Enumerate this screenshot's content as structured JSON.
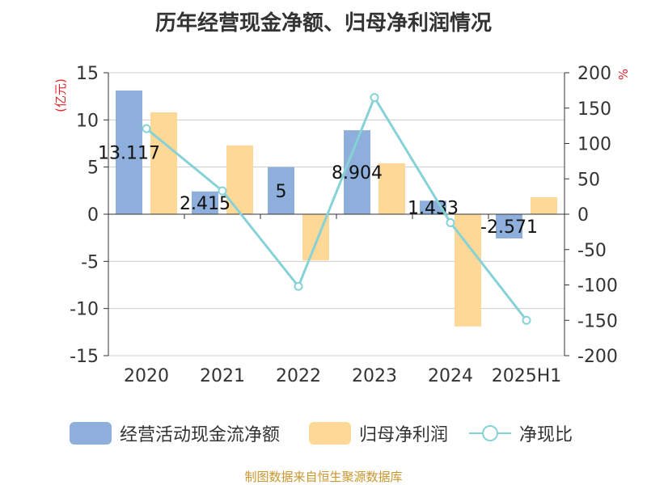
{
  "title": "历年经营现金净额、归母净利润情况",
  "source": "制图数据来自恒生聚源数据库",
  "colors": {
    "cash": "#8eaedb",
    "profit": "#fed897",
    "ratio": "#86d2d6",
    "left_unit": "#e0262b",
    "right_unit": "#e0262b",
    "grid": "#cccccc",
    "axis": "#333333",
    "text": "#333333",
    "source": "#c8962c"
  },
  "legend": {
    "cash": "经营活动现金流净额",
    "profit": "归母净利润",
    "ratio": "净现比"
  },
  "chart_data": {
    "type": "bar",
    "categories": [
      "2020",
      "2021",
      "2022",
      "2023",
      "2024",
      "2025H1"
    ],
    "series": [
      {
        "key": "cash",
        "name": "经营活动现金流净额",
        "type": "bar",
        "axis": "left",
        "values": [
          13.117,
          2.415,
          5,
          8.904,
          1.433,
          -2.571
        ],
        "labels": [
          "13.117",
          "2.415",
          "5",
          "8.904",
          "1.433",
          "-2.571"
        ]
      },
      {
        "key": "profit",
        "name": "归母净利润",
        "type": "bar",
        "axis": "left",
        "values": [
          10.8,
          7.3,
          -4.9,
          5.4,
          -11.9,
          1.8
        ]
      },
      {
        "key": "ratio",
        "name": "净现比",
        "type": "line",
        "axis": "right",
        "values": [
          121,
          33,
          -102,
          165,
          -12,
          -150
        ]
      }
    ],
    "left_axis": {
      "unit": "(亿元)",
      "min": -15,
      "max": 15,
      "step": 5,
      "ticks": [
        "15",
        "10",
        "5",
        "0",
        "-5",
        "-10",
        "-15"
      ]
    },
    "right_axis": {
      "unit": "%",
      "min": -200,
      "max": 200,
      "step": 50,
      "ticks": [
        "200",
        "150",
        "100",
        "50",
        "0",
        "-50",
        "-100",
        "-150",
        "-200"
      ]
    },
    "grid": true,
    "legend_position": "bottom"
  }
}
